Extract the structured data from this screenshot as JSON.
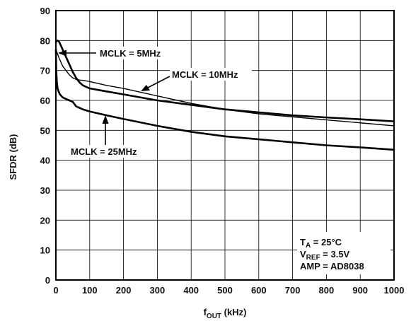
{
  "chart_data": {
    "type": "line",
    "title": "",
    "xlabel": {
      "main": "f",
      "sub": "OUT",
      "unit": " (kHz)"
    },
    "ylabel": "SFDR (dB)",
    "xlim": [
      0,
      1000
    ],
    "ylim": [
      0,
      90
    ],
    "xticks": [
      0,
      100,
      200,
      300,
      400,
      500,
      600,
      700,
      800,
      900,
      1000
    ],
    "yticks": [
      0,
      10,
      20,
      30,
      40,
      50,
      60,
      70,
      80,
      90
    ],
    "grid": true,
    "series": [
      {
        "name": "MCLK = 5MHz",
        "stroke_width": 2.6,
        "x": [
          0,
          5,
          10,
          20,
          30,
          40,
          50,
          60,
          70,
          80,
          90,
          100,
          150,
          200,
          300,
          400,
          500,
          600,
          700,
          800,
          900,
          1000
        ],
        "y": [
          79.5,
          80,
          79.5,
          77,
          74.5,
          72,
          69.5,
          67.5,
          66,
          65,
          64.5,
          64,
          63,
          62,
          60,
          58.5,
          57,
          56,
          55,
          54.3,
          53.7,
          53
        ]
      },
      {
        "name": "MCLK = 10MHz",
        "stroke_width": 1.4,
        "x": [
          0,
          10,
          20,
          30,
          40,
          50,
          60,
          70,
          80,
          100,
          150,
          200,
          300,
          400,
          500,
          600,
          700,
          800,
          900,
          1000
        ],
        "y": [
          77,
          74,
          71.5,
          70,
          68.5,
          67.5,
          67,
          66.8,
          66.7,
          66.3,
          65,
          64,
          61.5,
          59,
          57,
          55.5,
          54.5,
          53.5,
          52.5,
          51.5
        ]
      },
      {
        "name": "MCLK = 25MHz",
        "stroke_width": 2.6,
        "x": [
          0,
          1,
          3,
          5,
          8,
          12,
          20,
          30,
          40,
          50,
          60,
          70,
          80,
          100,
          150,
          200,
          300,
          400,
          500,
          600,
          700,
          800,
          900,
          1000
        ],
        "y": [
          77,
          70,
          66,
          64,
          63,
          62,
          61,
          60.5,
          60,
          59.5,
          58,
          57.5,
          57,
          56.3,
          55,
          53.8,
          51.5,
          49.5,
          48,
          47,
          46,
          45,
          44.3,
          43.5
        ]
      }
    ],
    "annotations": [
      {
        "text": "MCLK = 5MHz",
        "series": 0
      },
      {
        "text": "MCLK = 10MHz",
        "series": 1
      },
      {
        "text": "MCLK = 25MHz",
        "series": 2
      }
    ],
    "conditions": [
      {
        "main": "T",
        "sub": "A",
        "rest": " = 25°C"
      },
      {
        "main": "V",
        "sub": "REF",
        "rest": " = 3.5V"
      },
      {
        "main": "AMP = AD8038",
        "sub": "",
        "rest": ""
      }
    ],
    "colors": {
      "line": "#000000",
      "grid": "#000000",
      "background": "#ffffff"
    }
  }
}
